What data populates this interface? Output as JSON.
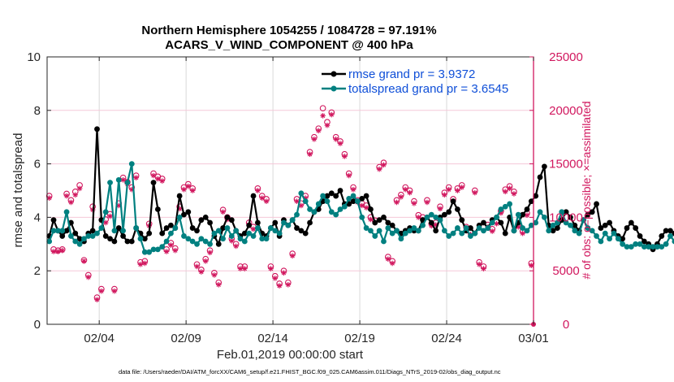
{
  "chart_data": {
    "type": "line",
    "title": [
      "Northern Hemisphere 1054255 / 1084728 = 97.191%",
      "ACARS_V_WIND_COMPONENT @ 400 hPa"
    ],
    "xlabel": "Feb.01,2019 00:00:00 start",
    "ylabel_left": "rmse and totalspread",
    "ylabel_right": "# of obs: o=possible; ×=assimilated",
    "footnote": "data file: /Users/raeder/DAI/ATM_forcXX/CAM6_setup/f.e21.FHIST_BGC.f09_025.CAM6assim.011/Diags_NTrS_2019-02/obs_diag_output.nc",
    "x_range_days": [
      0,
      28
    ],
    "x_tick_days": [
      3,
      8,
      13,
      18,
      23,
      28
    ],
    "x_tick_labels": [
      "02/04",
      "02/09",
      "02/14",
      "02/19",
      "02/24",
      "03/01"
    ],
    "ylim_left": [
      0,
      10
    ],
    "y_ticks_left": [
      "0",
      "2",
      "4",
      "6",
      "8",
      "10"
    ],
    "ylim_right": [
      0,
      25000
    ],
    "y_ticks_right": [
      "0",
      "5000",
      "10000",
      "15000",
      "20000",
      "25000"
    ],
    "grid": true,
    "legend_position": "top-right",
    "colors": {
      "rmse": "#000000",
      "totalspread": "#008080",
      "obs": "#d1175e",
      "legend_text": "#0f4fd8",
      "grid_x": "#d9d9d9",
      "grid_y": "#f5c8d8"
    },
    "series": [
      {
        "name": "rmse grand pr = 3.9372",
        "axis": "left",
        "time_step_days": 0.25,
        "values": [
          3.3,
          3.9,
          3.5,
          3.3,
          3.5,
          3.8,
          3.4,
          3.2,
          3.1,
          3.4,
          3.5,
          7.3,
          3.9,
          3.3,
          3.2,
          3.1,
          3.6,
          3.3,
          3.1,
          3.1,
          3.6,
          3.4,
          3.2,
          3.4,
          5.3,
          4.3,
          3.4,
          3.6,
          3.7,
          3.6,
          4.8,
          4.1,
          4.2,
          3.6,
          3.5,
          3.9,
          4.0,
          3.8,
          3.3,
          3.0,
          3.6,
          4.0,
          3.9,
          3.5,
          3.3,
          3.4,
          3.7,
          4.8,
          3.8,
          3.4,
          3.3,
          3.6,
          3.8,
          3.3,
          3.9,
          3.7,
          3.9,
          3.6,
          3.5,
          3.4,
          3.8,
          4.2,
          4.3,
          4.6,
          4.8,
          4.9,
          4.8,
          5.0,
          4.5,
          4.5,
          4.6,
          4.6,
          4.7,
          4.8,
          4.3,
          3.8,
          3.9,
          4.0,
          3.8,
          3.7,
          3.5,
          3.4,
          3.5,
          3.6,
          3.5,
          3.5,
          3.9,
          4.0,
          3.8,
          3.5,
          4.0,
          4.1,
          4.2,
          4.6,
          4.3,
          3.9,
          3.5,
          3.6,
          3.4,
          3.7,
          3.8,
          3.6,
          3.9,
          4.0,
          3.8,
          3.4,
          4.0,
          3.5,
          3.8,
          4.1,
          4.3,
          4.6,
          4.8,
          5.5,
          5.9,
          3.7,
          3.5,
          3.6,
          3.9,
          4.2,
          4.0,
          3.7,
          3.5,
          3.9,
          4.1,
          4.2,
          4.5,
          3.6,
          3.7,
          3.8,
          3.5,
          3.3,
          3.2,
          3.6,
          3.8,
          3.6,
          3.3,
          3.1,
          3.0,
          2.8,
          3.0,
          3.3,
          3.5,
          3.5,
          3.4,
          3.2,
          3.1,
          3.2,
          3.1,
          3.2,
          3.3,
          3.2,
          3.1,
          3.1
        ]
      },
      {
        "name": "totalspread grand pr = 3.6545",
        "axis": "left",
        "time_step_days": 0.25,
        "values": [
          3.1,
          3.5,
          3.5,
          3.5,
          4.2,
          3.3,
          3.1,
          3.0,
          3.2,
          3.3,
          3.3,
          3.4,
          3.6,
          4.2,
          5.3,
          3.5,
          5.4,
          3.5,
          5.3,
          6.0,
          3.6,
          3.2,
          2.7,
          2.7,
          2.8,
          2.8,
          2.9,
          3.1,
          3.4,
          3.6,
          4.0,
          3.3,
          3.2,
          3.1,
          3.0,
          3.2,
          3.1,
          3.0,
          3.4,
          3.5,
          3.2,
          3.6,
          3.3,
          3.5,
          3.2,
          3.1,
          3.4,
          3.3,
          3.6,
          3.2,
          3.2,
          3.6,
          3.5,
          3.4,
          3.8,
          3.7,
          3.9,
          4.1,
          4.9,
          4.6,
          4.3,
          4.2,
          4.5,
          4.8,
          4.6,
          4.2,
          4.1,
          4.3,
          4.4,
          4.7,
          4.8,
          4.6,
          4.0,
          3.6,
          3.5,
          3.3,
          3.5,
          3.1,
          3.6,
          3.4,
          3.5,
          3.2,
          3.4,
          3.5,
          3.6,
          3.5,
          3.7,
          4.0,
          4.1,
          4.0,
          3.9,
          3.5,
          3.3,
          3.4,
          3.6,
          3.4,
          3.6,
          3.3,
          3.4,
          3.6,
          3.5,
          3.6,
          3.8,
          4.0,
          4.3,
          4.4,
          4.5,
          3.5,
          4.1,
          3.6,
          3.5,
          3.7,
          3.8,
          4.2,
          4.0,
          3.5,
          3.7,
          3.8,
          4.2,
          3.8,
          3.7,
          3.5,
          3.4,
          3.9,
          3.6,
          3.5,
          3.3,
          3.1,
          3.4,
          3.2,
          3.4,
          3.2,
          3.0,
          2.9,
          2.9,
          3.0,
          3.0,
          2.9,
          2.9,
          2.9,
          2.9,
          2.9,
          3.0,
          3.3,
          3.1,
          3.0,
          2.9,
          3.0,
          3.0,
          3.0,
          3.1,
          3.0,
          3.0,
          3.0
        ]
      },
      {
        "name": "possible obs",
        "axis": "right",
        "marker": "o",
        "time_step_days": 0.25,
        "values": [
          12000,
          7000,
          6900,
          7000,
          12200,
          11600,
          12400,
          13000,
          6000,
          4600,
          11000,
          2500,
          3300,
          9800,
          10300,
          3300,
          11300,
          13700,
          13300,
          12800,
          13900,
          5800,
          5900,
          9400,
          14100,
          13800,
          13600,
          7000,
          7600,
          7100,
          11000,
          12800,
          13100,
          12700,
          5600,
          5100,
          6100,
          6900,
          4800,
          3900,
          10700,
          10000,
          8000,
          7500,
          5400,
          5400,
          9500,
          9100,
          12700,
          12000,
          11700,
          5400,
          4500,
          3800,
          5000,
          3900,
          6600,
          11700,
          11300,
          12000,
          16100,
          17500,
          18300,
          20200,
          18900,
          19800,
          17500,
          17100,
          15900,
          14100,
          12800,
          11600,
          11300,
          11100,
          10000,
          9700,
          14700,
          15100,
          6300,
          5900,
          11600,
          12100,
          12800,
          12500,
          11500,
          10200,
          10000,
          11600,
          9400,
          9500,
          11000,
          12300,
          12800,
          11700,
          12700,
          13000,
          9100,
          8600,
          12500,
          5800,
          5400,
          9300,
          8900,
          9600,
          10600,
          12600,
          12900,
          12400,
          9300,
          8700,
          10400,
          5700,
          10900,
          10200,
          7800,
          7000,
          11400,
          7700,
          13100,
          12200,
          11300,
          12600,
          12200,
          13600,
          10800,
          5300,
          4700,
          6800,
          7400,
          8300,
          14800,
          12600,
          12000,
          12800,
          13600,
          12100,
          10600,
          13100,
          10300,
          7800,
          7500,
          7700,
          7500,
          7800,
          9800,
          6500,
          13400,
          13900,
          8800,
          7700,
          12400,
          12700,
          12000,
          7800
        ]
      },
      {
        "name": "assimilated obs",
        "axis": "right",
        "marker": "*",
        "time_step_days": 0.25,
        "values": [
          11800,
          6800,
          6800,
          6900,
          12000,
          11400,
          12100,
          12700,
          5900,
          4400,
          10700,
          2300,
          3100,
          9500,
          10100,
          3100,
          11100,
          13500,
          13100,
          12600,
          13700,
          5600,
          5700,
          9200,
          13900,
          13600,
          13400,
          6800,
          7400,
          6900,
          10800,
          12600,
          12900,
          12500,
          5400,
          4900,
          5900,
          6700,
          4600,
          3700,
          10500,
          9800,
          7800,
          7300,
          5200,
          5200,
          9300,
          8900,
          12500,
          11800,
          11500,
          5200,
          4300,
          3600,
          4800,
          3700,
          6400,
          11500,
          11100,
          11800,
          15900,
          17300,
          18100,
          19500,
          18600,
          19600,
          17300,
          16900,
          15700,
          13900,
          12600,
          11400,
          11100,
          10900,
          9800,
          9500,
          14500,
          14900,
          6100,
          5700,
          11400,
          11900,
          12600,
          12300,
          11300,
          10000,
          9800,
          11400,
          9200,
          9300,
          10800,
          12100,
          12600,
          11500,
          12500,
          12800,
          8900,
          8400,
          12300,
          5600,
          5200,
          9100,
          8700,
          9400,
          10400,
          12400,
          12700,
          12200,
          9100,
          8500,
          10200,
          5500,
          10700,
          10000,
          7600,
          6800,
          11200,
          7500,
          12900,
          12000,
          11100,
          12400,
          12000,
          13400,
          10600,
          5100,
          4500,
          6600,
          7200,
          8100,
          14600,
          12400,
          11800,
          12600,
          13400,
          11900,
          10400,
          12900,
          10100,
          7600,
          7300,
          7500,
          7300,
          7600,
          9600,
          6300,
          13200,
          13700,
          8600,
          7500,
          12200,
          12500,
          11800,
          7600
        ]
      }
    ],
    "end_point_obs": {
      "day": 28,
      "value": 0
    }
  }
}
